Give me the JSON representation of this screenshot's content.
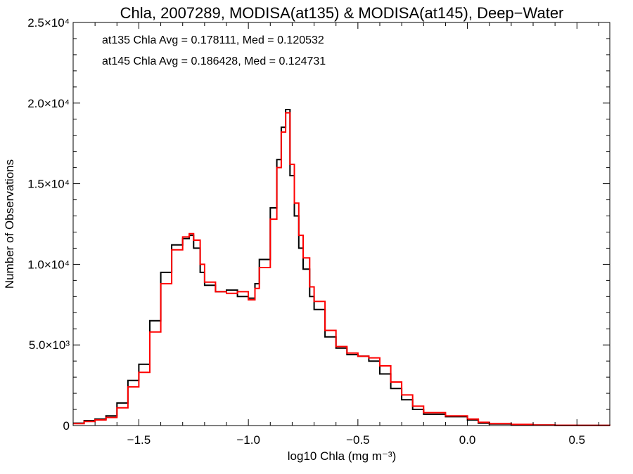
{
  "chart_data": {
    "type": "line",
    "title": "Chla, 2007289, MODISA(at135) & MODISA(at145), Deep−Water",
    "xlabel": "log10 Chla (mg m⁻³)",
    "ylabel": "Number of Observations",
    "xlim": [
      -1.8,
      0.65
    ],
    "ylim": [
      0,
      25000
    ],
    "grid": false,
    "step": true,
    "x_ticks": [
      {
        "value": -1.5,
        "label": "−1.5"
      },
      {
        "value": -1.0,
        "label": "−1.0"
      },
      {
        "value": -0.5,
        "label": "−0.5"
      },
      {
        "value": 0.0,
        "label": "0.0"
      },
      {
        "value": 0.5,
        "label": "0.5"
      }
    ],
    "y_ticks": [
      {
        "value": 0,
        "label": "0"
      },
      {
        "value": 5000,
        "label": "5.0×10³"
      },
      {
        "value": 10000,
        "label": "1.0×10⁴"
      },
      {
        "value": 15000,
        "label": "1.5×10⁴"
      },
      {
        "value": 20000,
        "label": "2.0×10⁴"
      },
      {
        "value": 25000,
        "label": "2.5×10⁴"
      }
    ],
    "annotations": [
      {
        "text": "at135 Chla Avg = 0.178111, Med = 0.120532",
        "color": "#000000"
      },
      {
        "text": "at145 Chla Avg = 0.186428, Med = 0.124731",
        "color": "#ff0000"
      }
    ],
    "series": [
      {
        "color": "#000000",
        "x": [
          -1.8,
          -1.75,
          -1.7,
          -1.65,
          -1.6,
          -1.55,
          -1.5,
          -1.45,
          -1.4,
          -1.35,
          -1.3,
          -1.27,
          -1.25,
          -1.22,
          -1.2,
          -1.15,
          -1.1,
          -1.05,
          -1.0,
          -0.97,
          -0.95,
          -0.9,
          -0.87,
          -0.85,
          -0.83,
          -0.81,
          -0.79,
          -0.77,
          -0.75,
          -0.72,
          -0.7,
          -0.65,
          -0.6,
          -0.55,
          -0.5,
          -0.45,
          -0.4,
          -0.35,
          -0.3,
          -0.25,
          -0.2,
          -0.1,
          0.0,
          0.05,
          0.1,
          0.2,
          0.3,
          0.4,
          0.5,
          0.65
        ],
        "values": [
          150,
          300,
          400,
          600,
          1400,
          2800,
          3800,
          6500,
          9500,
          11200,
          11600,
          11800,
          11000,
          9500,
          8700,
          8300,
          8400,
          8000,
          7900,
          8800,
          10300,
          13500,
          16500,
          18500,
          19600,
          15500,
          13000,
          11000,
          9700,
          8000,
          7200,
          5500,
          4800,
          4400,
          4300,
          4000,
          3200,
          2300,
          1600,
          1000,
          700,
          550,
          350,
          150,
          100,
          60,
          30,
          15,
          8,
          5
        ]
      },
      {
        "color": "#ff0000",
        "x": [
          -1.8,
          -1.75,
          -1.7,
          -1.65,
          -1.6,
          -1.55,
          -1.5,
          -1.45,
          -1.4,
          -1.35,
          -1.3,
          -1.27,
          -1.25,
          -1.22,
          -1.2,
          -1.15,
          -1.1,
          -1.05,
          -1.0,
          -0.97,
          -0.95,
          -0.9,
          -0.87,
          -0.85,
          -0.83,
          -0.81,
          -0.79,
          -0.77,
          -0.75,
          -0.72,
          -0.7,
          -0.65,
          -0.6,
          -0.55,
          -0.5,
          -0.45,
          -0.4,
          -0.35,
          -0.3,
          -0.25,
          -0.2,
          -0.1,
          0.0,
          0.05,
          0.1,
          0.2,
          0.3,
          0.4,
          0.5,
          0.65
        ],
        "values": [
          120,
          250,
          350,
          500,
          1100,
          2400,
          3300,
          5800,
          8800,
          10900,
          11700,
          11900,
          11500,
          10000,
          8900,
          8300,
          8200,
          8300,
          7800,
          8500,
          9800,
          12800,
          16000,
          18200,
          19400,
          16200,
          13800,
          11800,
          10400,
          8600,
          7700,
          5900,
          4900,
          4500,
          4300,
          4200,
          3700,
          2700,
          1900,
          1200,
          800,
          600,
          400,
          200,
          120,
          70,
          35,
          18,
          10,
          6
        ]
      }
    ]
  }
}
